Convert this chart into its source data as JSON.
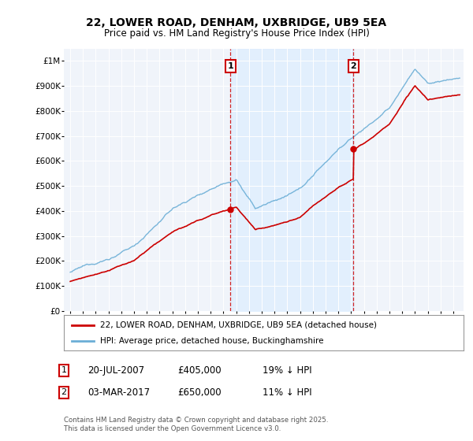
{
  "title": "22, LOWER ROAD, DENHAM, UXBRIDGE, UB9 5EA",
  "subtitle": "Price paid vs. HM Land Registry's House Price Index (HPI)",
  "ylim": [
    0,
    1050000
  ],
  "yticks": [
    0,
    100000,
    200000,
    300000,
    400000,
    500000,
    600000,
    700000,
    800000,
    900000,
    1000000
  ],
  "ytick_labels": [
    "£0",
    "£100K",
    "£200K",
    "£300K",
    "£400K",
    "£500K",
    "£600K",
    "£700K",
    "£800K",
    "£900K",
    "£1M"
  ],
  "hpi_color": "#6baed6",
  "price_color": "#cc0000",
  "vline_color": "#cc0000",
  "shade_color": "#ddeeff",
  "purchase1_date_x": 2007.55,
  "purchase1_price": 405000,
  "purchase2_date_x": 2017.17,
  "purchase2_price": 650000,
  "legend_label1": "22, LOWER ROAD, DENHAM, UXBRIDGE, UB9 5EA (detached house)",
  "legend_label2": "HPI: Average price, detached house, Buckinghamshire",
  "footer": "Contains HM Land Registry data © Crown copyright and database right 2025.\nThis data is licensed under the Open Government Licence v3.0.",
  "background_color": "#ffffff",
  "plot_bg_color": "#f0f4fa",
  "xmin": 1994.5,
  "xmax": 2025.8
}
